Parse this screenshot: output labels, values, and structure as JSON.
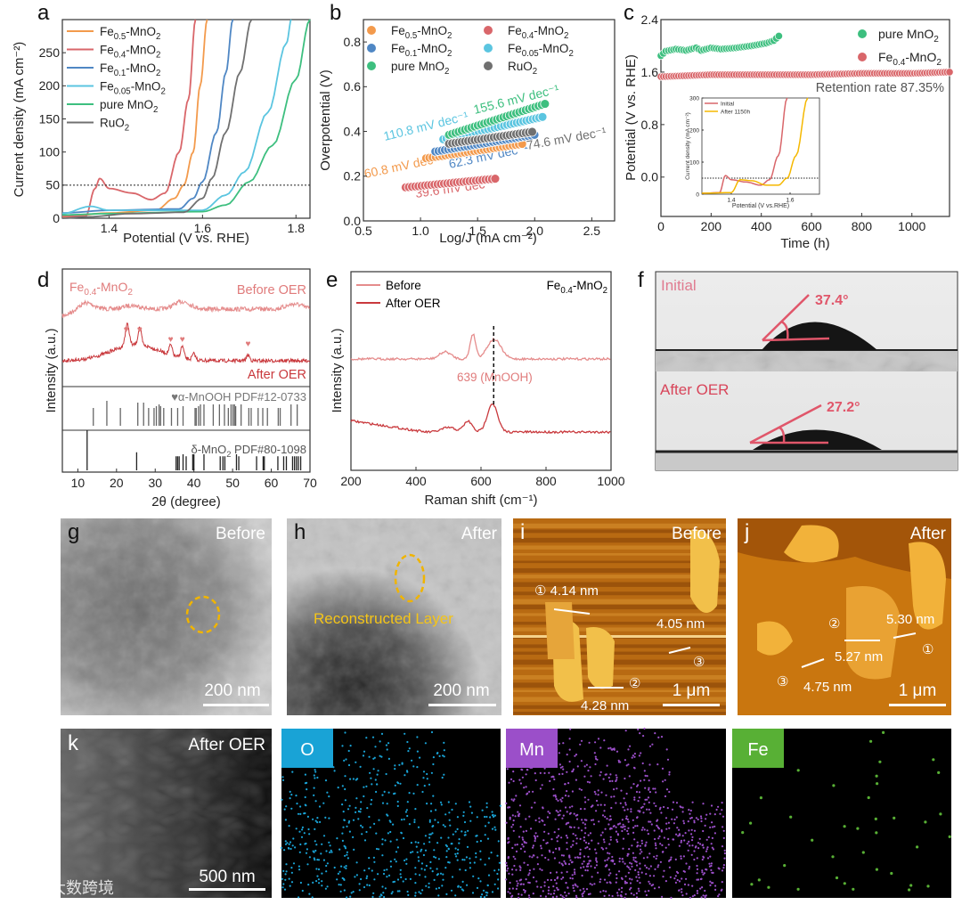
{
  "panel_letters": {
    "a": "a",
    "b": "b",
    "c": "c",
    "d": "d",
    "e": "e",
    "f": "f",
    "g": "g",
    "h": "h",
    "i": "i",
    "j": "j",
    "k": "k"
  },
  "colors": {
    "fe05": "#f39a4c",
    "fe04": "#d9666a",
    "fe01": "#4f87c4",
    "fe005": "#5bc5e0",
    "pure": "#3dbf7f",
    "ruo2": "#707070",
    "before": "#e58c8c",
    "after": "#c9393d",
    "inset_after": "#f5b800",
    "o_map": "#19a3d6",
    "mn_map": "#9b4fc9",
    "fe_map": "#58b035"
  },
  "chart_data": [
    {
      "id": "a",
      "type": "line",
      "title": "",
      "xlabel": "Potential (V vs. RHE)",
      "ylabel": "Current density (mA cm⁻²)",
      "xlim": [
        1.3,
        1.83
      ],
      "ylim": [
        0,
        300
      ],
      "xtick_labels": [
        "1.4",
        "1.6",
        "1.8"
      ],
      "ytick_labels": [
        "0",
        "50",
        "100",
        "150",
        "200",
        "250"
      ],
      "reference_line": {
        "y": 50,
        "style": "dotted"
      },
      "legend_position": "top-left",
      "series": [
        {
          "name": "Fe0.5-MnO2",
          "color_key": "fe05",
          "points": [
            [
              1.3,
              2
            ],
            [
              1.4,
              8
            ],
            [
              1.5,
              12
            ],
            [
              1.54,
              30
            ],
            [
              1.56,
              50
            ],
            [
              1.58,
              100
            ],
            [
              1.595,
              200
            ],
            [
              1.61,
              300
            ]
          ]
        },
        {
          "name": "Fe0.4-MnO2",
          "color_key": "fe04",
          "points": [
            [
              1.3,
              3
            ],
            [
              1.35,
              3
            ],
            [
              1.37,
              45
            ],
            [
              1.38,
              60
            ],
            [
              1.4,
              45
            ],
            [
              1.45,
              38
            ],
            [
              1.49,
              28
            ],
            [
              1.52,
              38
            ],
            [
              1.55,
              100
            ],
            [
              1.57,
              180
            ],
            [
              1.585,
              300
            ]
          ]
        },
        {
          "name": "Fe0.1-MnO2",
          "color_key": "fe01",
          "points": [
            [
              1.3,
              8
            ],
            [
              1.4,
              12
            ],
            [
              1.55,
              14
            ],
            [
              1.58,
              30
            ],
            [
              1.6,
              55
            ],
            [
              1.63,
              130
            ],
            [
              1.65,
              220
            ],
            [
              1.665,
              300
            ]
          ]
        },
        {
          "name": "Fe0.05-MnO2",
          "color_key": "fe005",
          "points": [
            [
              1.3,
              7
            ],
            [
              1.36,
              18
            ],
            [
              1.4,
              12
            ],
            [
              1.6,
              12
            ],
            [
              1.65,
              35
            ],
            [
              1.69,
              70
            ],
            [
              1.74,
              160
            ],
            [
              1.78,
              265
            ],
            [
              1.79,
              300
            ]
          ]
        },
        {
          "name": "pure MnO2",
          "color_key": "pure",
          "points": [
            [
              1.3,
              5
            ],
            [
              1.4,
              7
            ],
            [
              1.6,
              10
            ],
            [
              1.65,
              20
            ],
            [
              1.7,
              55
            ],
            [
              1.75,
              110
            ],
            [
              1.8,
              210
            ],
            [
              1.83,
              300
            ]
          ]
        },
        {
          "name": "RuO2",
          "color_key": "ruo2",
          "points": [
            [
              1.3,
              0
            ],
            [
              1.35,
              2
            ],
            [
              1.45,
              7
            ],
            [
              1.56,
              9
            ],
            [
              1.6,
              30
            ],
            [
              1.62,
              60
            ],
            [
              1.65,
              130
            ],
            [
              1.68,
              220
            ],
            [
              1.705,
              300
            ]
          ]
        }
      ]
    },
    {
      "id": "b",
      "type": "scatter",
      "title": "",
      "xlabel": "Log/J (mA cm⁻²)",
      "ylabel": "Overpotential (V)",
      "xlim": [
        0.5,
        2.7
      ],
      "ylim": [
        0,
        0.9
      ],
      "xtick_labels": [
        "0.5",
        "1.0",
        "1.5",
        "2.0",
        "2.5"
      ],
      "ytick_labels": [
        "0.0",
        "0.2",
        "0.4",
        "0.6",
        "0.8"
      ],
      "legend_position": "top",
      "series": [
        {
          "name": "Fe0.5-MnO2",
          "color_key": "fe05",
          "x_range": [
            1.05,
            1.9
          ],
          "y_range": [
            0.28,
            0.345
          ],
          "tafel_slope": "60.8 mV dec⁻¹"
        },
        {
          "name": "Fe0.4-MnO2",
          "color_key": "fe04",
          "x_range": [
            0.87,
            1.68
          ],
          "y_range": [
            0.15,
            0.19
          ],
          "tafel_slope": "39.6 mV dec⁻¹"
        },
        {
          "name": "Fe0.1-MnO2",
          "color_key": "fe01",
          "x_range": [
            1.13,
            2.0
          ],
          "y_range": [
            0.31,
            0.385
          ],
          "tafel_slope": "62.3 mV dec⁻¹"
        },
        {
          "name": "Fe0.05-MnO2",
          "color_key": "fe005",
          "x_range": [
            1.2,
            2.07
          ],
          "y_range": [
            0.365,
            0.465
          ],
          "tafel_slope": "110.8 mV dec⁻¹"
        },
        {
          "name": "pure MnO2",
          "color_key": "pure",
          "x_range": [
            1.25,
            2.1
          ],
          "y_range": [
            0.385,
            0.525
          ],
          "tafel_slope": "155.6 mV dec⁻¹"
        },
        {
          "name": "RuO2",
          "color_key": "ruo2",
          "x_range": [
            1.25,
            2.0
          ],
          "y_range": [
            0.345,
            0.4
          ],
          "tafel_slope": "74.6 mV dec⁻¹"
        }
      ]
    },
    {
      "id": "c",
      "type": "scatter",
      "title": "",
      "xlabel": "Time (h)",
      "ylabel": "Potential (V vs. RHE)",
      "xlim": [
        0,
        1150
      ],
      "ylim": [
        -0.6,
        2.4
      ],
      "xtick_labels": [
        "0",
        "200",
        "400",
        "600",
        "800",
        "1000"
      ],
      "ytick_labels": [
        "0.0",
        "0.8",
        "1.6",
        "2.4"
      ],
      "legend_position": "top-right",
      "annotation": "Retention rate 87.35%",
      "series": [
        {
          "name": "pure MnO2",
          "color_key": "pure",
          "points": [
            [
              0,
              1.85
            ],
            [
              20,
              1.92
            ],
            [
              60,
              1.95
            ],
            [
              100,
              1.93
            ],
            [
              140,
              1.97
            ],
            [
              160,
              1.93
            ],
            [
              200,
              1.97
            ],
            [
              240,
              1.95
            ],
            [
              300,
              1.97
            ],
            [
              360,
              2.0
            ],
            [
              420,
              2.04
            ],
            [
              450,
              2.08
            ],
            [
              470,
              2.15
            ]
          ]
        },
        {
          "name": "Fe0.4-MnO2",
          "color_key": "fe04",
          "points": [
            [
              0,
              1.53
            ],
            [
              200,
              1.56
            ],
            [
              400,
              1.56
            ],
            [
              600,
              1.56
            ],
            [
              800,
              1.58
            ],
            [
              1000,
              1.58
            ],
            [
              1150,
              1.6
            ]
          ]
        }
      ],
      "inset": {
        "xlabel": "Potential (V vs.RHE)",
        "ylabel": "Current density (mA cm⁻²)",
        "xlim": [
          1.3,
          1.7
        ],
        "ylim": [
          0,
          300
        ],
        "xtick_labels": [
          "1.4",
          "1.6"
        ],
        "ytick_labels": [
          "0",
          "100",
          "200",
          "300"
        ],
        "reference_line": {
          "y": 50
        },
        "series": [
          {
            "name": "Initial",
            "color_key": "fe04",
            "points": [
              [
                1.3,
                3
              ],
              [
                1.36,
                5
              ],
              [
                1.38,
                58
              ],
              [
                1.4,
                45
              ],
              [
                1.45,
                38
              ],
              [
                1.5,
                28
              ],
              [
                1.53,
                45
              ],
              [
                1.56,
                120
              ],
              [
                1.59,
                300
              ]
            ]
          },
          {
            "name": "After 1150h",
            "color_key": "inset_after",
            "points": [
              [
                1.3,
                3
              ],
              [
                1.4,
                5
              ],
              [
                1.43,
                45
              ],
              [
                1.47,
                42
              ],
              [
                1.52,
                28
              ],
              [
                1.56,
                28
              ],
              [
                1.59,
                50
              ],
              [
                1.62,
                120
              ],
              [
                1.66,
                300
              ]
            ]
          }
        ]
      }
    },
    {
      "id": "d",
      "type": "line",
      "title": "",
      "xlabel": "2θ (degree)",
      "ylabel": "Intensity (a.u.)",
      "xlim": [
        6,
        70
      ],
      "xtick_labels": [
        "10",
        "20",
        "30",
        "40",
        "50",
        "60",
        "70"
      ],
      "sample_label": "Fe0.4-MnO2",
      "series": [
        {
          "name": "Before OER",
          "color_key": "before",
          "humps": [
            [
              12,
              0.5
            ],
            [
              24,
              0.3
            ],
            [
              37,
              0.6
            ],
            [
              66,
              0.4
            ]
          ]
        },
        {
          "name": "After OER",
          "color_key": "after",
          "humps": [
            [
              22.5,
              0.6
            ],
            [
              23,
              0.7
            ],
            [
              26,
              0.9
            ],
            [
              34,
              0.5
            ],
            [
              37,
              0.6
            ],
            [
              40,
              0.3
            ],
            [
              54,
              0.3
            ]
          ],
          "marked_peaks_2theta": [
            22.5,
            26,
            34,
            37,
            54
          ]
        }
      ],
      "references": [
        {
          "name": "♥α-MnOOH PDF#12-0733",
          "sticks": [
            [
              14,
              0.5
            ],
            [
              17.5,
              0.7
            ],
            [
              21,
              0.5
            ],
            [
              25.5,
              0.65
            ],
            [
              27,
              0.65
            ],
            [
              28.3,
              0.5
            ],
            [
              29.7,
              0.5
            ],
            [
              30.3,
              0.55
            ],
            [
              31,
              0.6
            ],
            [
              31.4,
              0.55
            ],
            [
              32.2,
              0.5
            ],
            [
              34.2,
              0.5
            ],
            [
              35.8,
              0.5
            ],
            [
              37.2,
              0.55
            ],
            [
              40.3,
              0.5
            ],
            [
              40.6,
              0.5
            ],
            [
              41.2,
              0.55
            ],
            [
              41.7,
              0.6
            ],
            [
              42.6,
              0.6
            ],
            [
              45,
              0.6
            ],
            [
              46.6,
              0.6
            ],
            [
              47.9,
              0.6
            ],
            [
              48.9,
              0.5
            ],
            [
              49.6,
              0.6
            ],
            [
              50.1,
              0.6
            ],
            [
              50.5,
              0.6
            ],
            [
              50.8,
              0.55
            ],
            [
              52.2,
              0.6
            ],
            [
              54.2,
              0.5
            ],
            [
              54.8,
              0.5
            ],
            [
              56.6,
              0.5
            ],
            [
              57.8,
              0.5
            ],
            [
              59,
              0.5
            ],
            [
              61.8,
              0.5
            ],
            [
              62.3,
              0.5
            ],
            [
              65.1,
              0.6
            ],
            [
              66.7,
              0.6
            ]
          ]
        },
        {
          "name": "δ-MnO2 PDF#80-1098",
          "sticks": [
            [
              12.4,
              1.0
            ],
            [
              25.2,
              0.45
            ],
            [
              35.4,
              0.35
            ],
            [
              35.8,
              0.35
            ],
            [
              36.2,
              0.35
            ],
            [
              37.2,
              0.4
            ],
            [
              38,
              0.35
            ],
            [
              39.7,
              0.4
            ],
            [
              40,
              0.4
            ],
            [
              42.6,
              0.4
            ],
            [
              46.8,
              0.35
            ],
            [
              47.5,
              0.35
            ],
            [
              48,
              0.35
            ],
            [
              51,
              0.4
            ],
            [
              51.6,
              0.35
            ],
            [
              56.2,
              0.35
            ],
            [
              57.9,
              0.35
            ],
            [
              58.2,
              0.35
            ],
            [
              61.7,
              0.35
            ],
            [
              63.2,
              0.35
            ],
            [
              63.9,
              0.35
            ],
            [
              65.5,
              0.35
            ],
            [
              66,
              0.35
            ],
            [
              66.5,
              0.35
            ],
            [
              67,
              0.35
            ],
            [
              67.6,
              0.35
            ]
          ]
        }
      ]
    },
    {
      "id": "e",
      "type": "line",
      "title": "",
      "xlabel": "Raman shift (cm⁻¹)",
      "ylabel": "Intensity (a.u.)",
      "xlim": [
        200,
        1000
      ],
      "xtick_labels": [
        "200",
        "400",
        "600",
        "800",
        "1000"
      ],
      "sample_label": "Fe0.4-MnO2",
      "annotation": "639 (MnOOH)",
      "annotation_x": 639,
      "legend_position": "top-left",
      "series": [
        {
          "name": "Before",
          "color_key": "before",
          "peaks": [
            [
              490,
              8,
              25
            ],
            [
              575,
              28,
              12
            ],
            [
              640,
              22,
              30
            ]
          ]
        },
        {
          "name": "After OER",
          "color_key": "after",
          "peaks": [
            [
              500,
              5,
              30
            ],
            [
              560,
              12,
              18
            ],
            [
              635,
              32,
              22
            ]
          ],
          "background_slope": true
        }
      ]
    }
  ],
  "panel_f": {
    "initial_label": "Initial",
    "initial_angle": "37.4°",
    "after_label": "After OER",
    "after_angle": "27.2°"
  },
  "panel_g": {
    "tag": "Before",
    "scale": "200 nm"
  },
  "panel_h": {
    "tag": "After",
    "caption": "Reconstructed Layer",
    "scale": "200 nm"
  },
  "panel_i": {
    "tag": "Before",
    "m1": "① 4.14 nm",
    "m2": "4.05 nm",
    "m3": "③",
    "m4": "②",
    "m5": "4.28 nm",
    "scale": "1 μm"
  },
  "panel_j": {
    "tag": "After",
    "m1": "②",
    "m2": "5.30 nm",
    "m3": "①",
    "m4": "5.27 nm",
    "m5": "③",
    "m6": "4.75 nm",
    "scale": "1 μm"
  },
  "panel_k": {
    "tag": "After OER",
    "scale": "500 nm"
  },
  "eds": {
    "o": "O",
    "mn": "Mn",
    "fe": "Fe"
  },
  "watermark": "大数跨境"
}
